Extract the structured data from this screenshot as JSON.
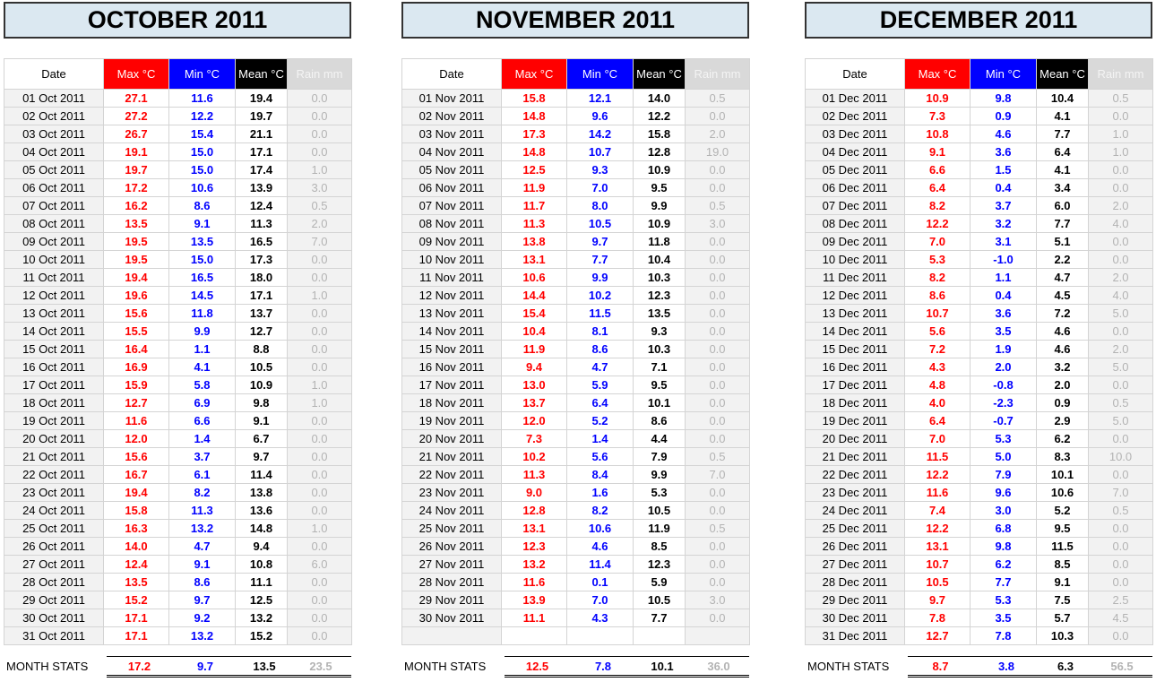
{
  "headers": {
    "date": "Date",
    "max": "Max °C",
    "min": "Min °C",
    "mean": "Mean °C",
    "rain": "Rain mm"
  },
  "stats_label": "MONTH STATS",
  "months": [
    {
      "title": "OCTOBER 2011",
      "rows": [
        [
          "01 Oct 2011",
          "27.1",
          "11.6",
          "19.4",
          "0.0"
        ],
        [
          "02 Oct 2011",
          "27.2",
          "12.2",
          "19.7",
          "0.0"
        ],
        [
          "03 Oct 2011",
          "26.7",
          "15.4",
          "21.1",
          "0.0"
        ],
        [
          "04 Oct 2011",
          "19.1",
          "15.0",
          "17.1",
          "0.0"
        ],
        [
          "05 Oct 2011",
          "19.7",
          "15.0",
          "17.4",
          "1.0"
        ],
        [
          "06 Oct 2011",
          "17.2",
          "10.6",
          "13.9",
          "3.0"
        ],
        [
          "07 Oct 2011",
          "16.2",
          "8.6",
          "12.4",
          "0.5"
        ],
        [
          "08 Oct 2011",
          "13.5",
          "9.1",
          "11.3",
          "2.0"
        ],
        [
          "09 Oct 2011",
          "19.5",
          "13.5",
          "16.5",
          "7.0"
        ],
        [
          "10 Oct 2011",
          "19.5",
          "15.0",
          "17.3",
          "0.0"
        ],
        [
          "11 Oct 2011",
          "19.4",
          "16.5",
          "18.0",
          "0.0"
        ],
        [
          "12 Oct 2011",
          "19.6",
          "14.5",
          "17.1",
          "1.0"
        ],
        [
          "13 Oct 2011",
          "15.6",
          "11.8",
          "13.7",
          "0.0"
        ],
        [
          "14 Oct 2011",
          "15.5",
          "9.9",
          "12.7",
          "0.0"
        ],
        [
          "15 Oct 2011",
          "16.4",
          "1.1",
          "8.8",
          "0.0"
        ],
        [
          "16 Oct 2011",
          "16.9",
          "4.1",
          "10.5",
          "0.0"
        ],
        [
          "17 Oct 2011",
          "15.9",
          "5.8",
          "10.9",
          "1.0"
        ],
        [
          "18 Oct 2011",
          "12.7",
          "6.9",
          "9.8",
          "1.0"
        ],
        [
          "19 Oct 2011",
          "11.6",
          "6.6",
          "9.1",
          "0.0"
        ],
        [
          "20 Oct 2011",
          "12.0",
          "1.4",
          "6.7",
          "0.0"
        ],
        [
          "21 Oct 2011",
          "15.6",
          "3.7",
          "9.7",
          "0.0"
        ],
        [
          "22 Oct 2011",
          "16.7",
          "6.1",
          "11.4",
          "0.0"
        ],
        [
          "23 Oct 2011",
          "19.4",
          "8.2",
          "13.8",
          "0.0"
        ],
        [
          "24 Oct 2011",
          "15.8",
          "11.3",
          "13.6",
          "0.0"
        ],
        [
          "25 Oct 2011",
          "16.3",
          "13.2",
          "14.8",
          "1.0"
        ],
        [
          "26 Oct 2011",
          "14.0",
          "4.7",
          "9.4",
          "0.0"
        ],
        [
          "27 Oct 2011",
          "12.4",
          "9.1",
          "10.8",
          "6.0"
        ],
        [
          "28 Oct 2011",
          "13.5",
          "8.6",
          "11.1",
          "0.0"
        ],
        [
          "29 Oct 2011",
          "15.2",
          "9.7",
          "12.5",
          "0.0"
        ],
        [
          "30 Oct 2011",
          "17.1",
          "9.2",
          "13.2",
          "0.0"
        ],
        [
          "31 Oct 2011",
          "17.1",
          "13.2",
          "15.2",
          "0.0"
        ]
      ],
      "stats": {
        "max": "17.2",
        "min": "9.7",
        "mean": "13.5",
        "rain": "23.5"
      }
    },
    {
      "title": "NOVEMBER 2011",
      "rows": [
        [
          "01 Nov 2011",
          "15.8",
          "12.1",
          "14.0",
          "0.5"
        ],
        [
          "02 Nov 2011",
          "14.8",
          "9.6",
          "12.2",
          "0.0"
        ],
        [
          "03 Nov 2011",
          "17.3",
          "14.2",
          "15.8",
          "2.0"
        ],
        [
          "04 Nov 2011",
          "14.8",
          "10.7",
          "12.8",
          "19.0"
        ],
        [
          "05 Nov 2011",
          "12.5",
          "9.3",
          "10.9",
          "0.0"
        ],
        [
          "06 Nov 2011",
          "11.9",
          "7.0",
          "9.5",
          "0.0"
        ],
        [
          "07 Nov 2011",
          "11.7",
          "8.0",
          "9.9",
          "0.5"
        ],
        [
          "08 Nov 2011",
          "11.3",
          "10.5",
          "10.9",
          "3.0"
        ],
        [
          "09 Nov 2011",
          "13.8",
          "9.7",
          "11.8",
          "0.0"
        ],
        [
          "10 Nov 2011",
          "13.1",
          "7.7",
          "10.4",
          "0.0"
        ],
        [
          "11 Nov 2011",
          "10.6",
          "9.9",
          "10.3",
          "0.0"
        ],
        [
          "12 Nov 2011",
          "14.4",
          "10.2",
          "12.3",
          "0.0"
        ],
        [
          "13 Nov 2011",
          "15.4",
          "11.5",
          "13.5",
          "0.0"
        ],
        [
          "14 Nov 2011",
          "10.4",
          "8.1",
          "9.3",
          "0.0"
        ],
        [
          "15 Nov 2011",
          "11.9",
          "8.6",
          "10.3",
          "0.0"
        ],
        [
          "16 Nov 2011",
          "9.4",
          "4.7",
          "7.1",
          "0.0"
        ],
        [
          "17 Nov 2011",
          "13.0",
          "5.9",
          "9.5",
          "0.0"
        ],
        [
          "18 Nov 2011",
          "13.7",
          "6.4",
          "10.1",
          "0.0"
        ],
        [
          "19 Nov 2011",
          "12.0",
          "5.2",
          "8.6",
          "0.0"
        ],
        [
          "20 Nov 2011",
          "7.3",
          "1.4",
          "4.4",
          "0.0"
        ],
        [
          "21 Nov 2011",
          "10.2",
          "5.6",
          "7.9",
          "0.5"
        ],
        [
          "22 Nov 2011",
          "11.3",
          "8.4",
          "9.9",
          "7.0"
        ],
        [
          "23 Nov 2011",
          "9.0",
          "1.6",
          "5.3",
          "0.0"
        ],
        [
          "24 Nov 2011",
          "12.8",
          "8.2",
          "10.5",
          "0.0"
        ],
        [
          "25 Nov 2011",
          "13.1",
          "10.6",
          "11.9",
          "0.5"
        ],
        [
          "26 Nov 2011",
          "12.3",
          "4.6",
          "8.5",
          "0.0"
        ],
        [
          "27 Nov 2011",
          "13.2",
          "11.4",
          "12.3",
          "0.0"
        ],
        [
          "28 Nov 2011",
          "11.6",
          "0.1",
          "5.9",
          "0.0"
        ],
        [
          "29 Nov 2011",
          "13.9",
          "7.0",
          "10.5",
          "3.0"
        ],
        [
          "30 Nov 2011",
          "11.1",
          "4.3",
          "7.7",
          "0.0"
        ],
        [
          "",
          "",
          "",
          "",
          ""
        ]
      ],
      "stats": {
        "max": "12.5",
        "min": "7.8",
        "mean": "10.1",
        "rain": "36.0"
      }
    },
    {
      "title": "DECEMBER 2011",
      "rows": [
        [
          "01 Dec 2011",
          "10.9",
          "9.8",
          "10.4",
          "0.5"
        ],
        [
          "02 Dec 2011",
          "7.3",
          "0.9",
          "4.1",
          "0.0"
        ],
        [
          "03 Dec 2011",
          "10.8",
          "4.6",
          "7.7",
          "1.0"
        ],
        [
          "04 Dec 2011",
          "9.1",
          "3.6",
          "6.4",
          "1.0"
        ],
        [
          "05 Dec 2011",
          "6.6",
          "1.5",
          "4.1",
          "0.0"
        ],
        [
          "06 Dec 2011",
          "6.4",
          "0.4",
          "3.4",
          "0.0"
        ],
        [
          "07 Dec 2011",
          "8.2",
          "3.7",
          "6.0",
          "2.0"
        ],
        [
          "08 Dec 2011",
          "12.2",
          "3.2",
          "7.7",
          "4.0"
        ],
        [
          "09 Dec 2011",
          "7.0",
          "3.1",
          "5.1",
          "0.0"
        ],
        [
          "10 Dec 2011",
          "5.3",
          "-1.0",
          "2.2",
          "0.0"
        ],
        [
          "11 Dec 2011",
          "8.2",
          "1.1",
          "4.7",
          "2.0"
        ],
        [
          "12 Dec 2011",
          "8.6",
          "0.4",
          "4.5",
          "4.0"
        ],
        [
          "13 Dec 2011",
          "10.7",
          "3.6",
          "7.2",
          "5.0"
        ],
        [
          "14 Dec 2011",
          "5.6",
          "3.5",
          "4.6",
          "0.0"
        ],
        [
          "15 Dec 2011",
          "7.2",
          "1.9",
          "4.6",
          "2.0"
        ],
        [
          "16 Dec 2011",
          "4.3",
          "2.0",
          "3.2",
          "5.0"
        ],
        [
          "17 Dec 2011",
          "4.8",
          "-0.8",
          "2.0",
          "0.0"
        ],
        [
          "18 Dec 2011",
          "4.0",
          "-2.3",
          "0.9",
          "0.5"
        ],
        [
          "19 Dec 2011",
          "6.4",
          "-0.7",
          "2.9",
          "5.0"
        ],
        [
          "20 Dec 2011",
          "7.0",
          "5.3",
          "6.2",
          "0.0"
        ],
        [
          "21 Dec 2011",
          "11.5",
          "5.0",
          "8.3",
          "10.0"
        ],
        [
          "22 Dec 2011",
          "12.2",
          "7.9",
          "10.1",
          "0.0"
        ],
        [
          "23 Dec 2011",
          "11.6",
          "9.6",
          "10.6",
          "7.0"
        ],
        [
          "24 Dec 2011",
          "7.4",
          "3.0",
          "5.2",
          "0.5"
        ],
        [
          "25 Dec 2011",
          "12.2",
          "6.8",
          "9.5",
          "0.0"
        ],
        [
          "26 Dec 2011",
          "13.1",
          "9.8",
          "11.5",
          "0.0"
        ],
        [
          "27 Dec 2011",
          "10.7",
          "6.2",
          "8.5",
          "0.0"
        ],
        [
          "28 Dec 2011",
          "10.5",
          "7.7",
          "9.1",
          "0.0"
        ],
        [
          "29 Dec 2011",
          "9.7",
          "5.3",
          "7.5",
          "2.5"
        ],
        [
          "30 Dec 2011",
          "7.8",
          "3.5",
          "5.7",
          "4.5"
        ],
        [
          "31 Dec 2011",
          "12.7",
          "7.8",
          "10.3",
          "0.0"
        ]
      ],
      "stats": {
        "max": "8.7",
        "min": "3.8",
        "mean": "6.3",
        "rain": "56.5"
      }
    }
  ]
}
